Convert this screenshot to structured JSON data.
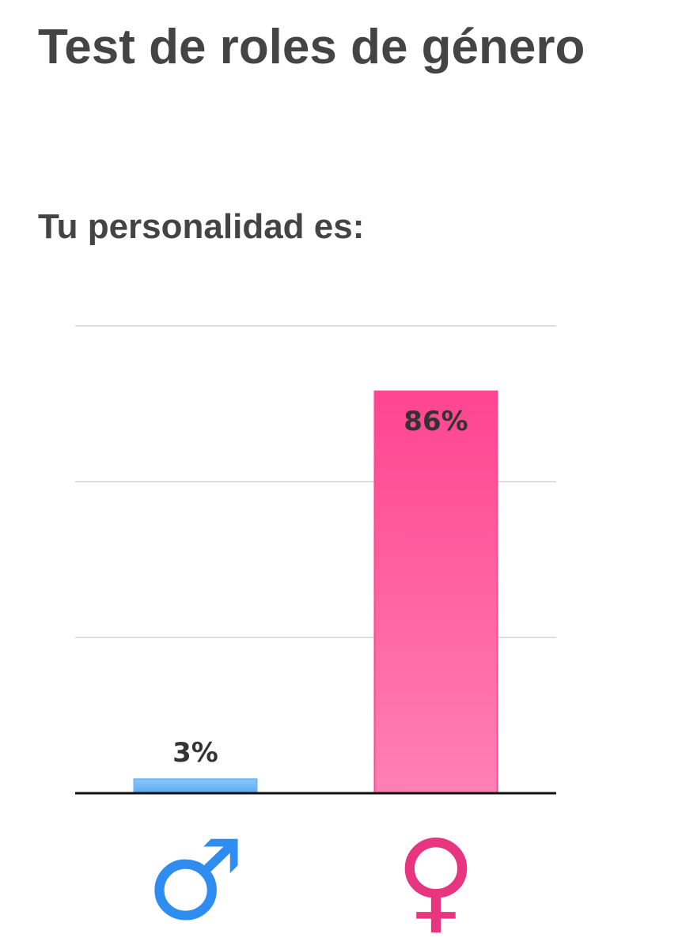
{
  "chart_data": {
    "type": "bar",
    "title": "Test de roles de género",
    "subtitle": "Tu personalidad es:",
    "categories": [
      "♂",
      "♀"
    ],
    "values": [
      3,
      86
    ],
    "value_labels": [
      "3%",
      "86%"
    ],
    "series_colors": [
      "#6bb8f5",
      "#ff4a93"
    ],
    "category_colors": [
      "#2f8cf0",
      "#e8357f"
    ],
    "ylim": [
      0,
      100
    ],
    "grid": true
  }
}
